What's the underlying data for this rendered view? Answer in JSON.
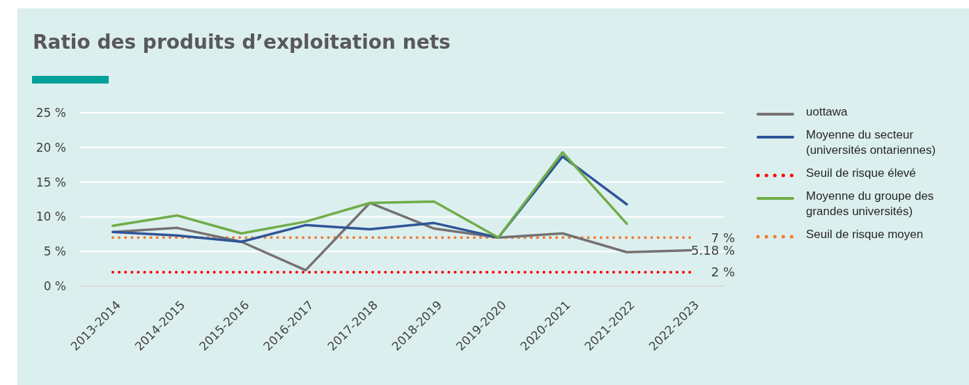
{
  "chart_data": {
    "type": "line",
    "title": "Ratio des produits d’exploitation nets",
    "categories": [
      "2013-2014",
      "2014-2015",
      "2015-2016",
      "2016-2017",
      "2017-2018",
      "2018-2019",
      "2019-2020",
      "2020-2021",
      "2021-2022",
      "2022-2023"
    ],
    "series": [
      {
        "name": "uottawa",
        "color": "#767171",
        "values": [
          7.8,
          8.4,
          6.4,
          2.3,
          12.0,
          8.3,
          7.0,
          7.6,
          4.9,
          5.18
        ],
        "value_labels": [
          null,
          null,
          null,
          null,
          null,
          null,
          null,
          null,
          null,
          "5.18 %"
        ]
      },
      {
        "name": "Moyenne du secteur (universités ontariennes)",
        "color": "#2f5597",
        "values": [
          7.8,
          7.3,
          6.4,
          8.8,
          8.2,
          9.1,
          7.0,
          18.7,
          11.8,
          null
        ]
      },
      {
        "name": "Seuil de risque élevé",
        "color": "#ff0000",
        "line_style": "dotted",
        "values": [
          2,
          2,
          2,
          2,
          2,
          2,
          2,
          2,
          2,
          2
        ],
        "value_labels": [
          null,
          null,
          null,
          null,
          null,
          null,
          null,
          null,
          null,
          "2 %"
        ]
      },
      {
        "name": "Moyenne du groupe des grandes universités)",
        "color": "#70ad47",
        "values": [
          8.7,
          10.2,
          7.6,
          9.3,
          12.0,
          12.2,
          7.0,
          19.3,
          9.0,
          null
        ]
      },
      {
        "name": "Seuil de risque moyen",
        "color": "#ed7d31",
        "line_style": "dotted",
        "values": [
          7,
          7,
          7,
          7,
          7,
          7,
          7,
          7,
          7,
          7
        ],
        "value_labels": [
          null,
          null,
          null,
          null,
          null,
          null,
          null,
          null,
          null,
          "7 %"
        ]
      }
    ],
    "ylim": [
      0,
      25
    ],
    "yticks": [
      {
        "value": 0,
        "label": "0 %"
      },
      {
        "value": 5,
        "label": "5 %"
      },
      {
        "value": 10,
        "label": "10 %"
      },
      {
        "value": 15,
        "label": "15 %"
      },
      {
        "value": 20,
        "label": "20 %"
      },
      {
        "value": 25,
        "label": "25 %"
      }
    ],
    "grid": "y",
    "legend": "right"
  }
}
